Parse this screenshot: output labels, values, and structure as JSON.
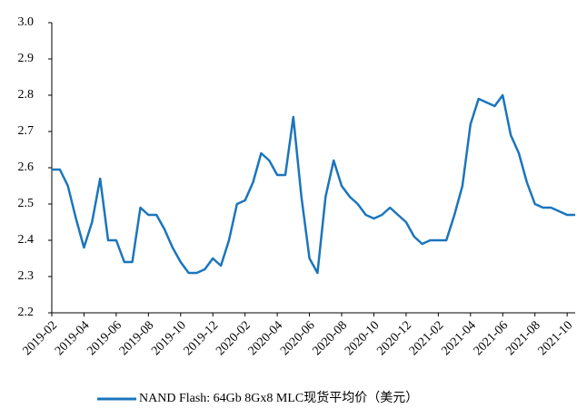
{
  "chart_data": {
    "type": "line",
    "categories": [
      "2019-02",
      null,
      null,
      null,
      "2019-04",
      null,
      null,
      null,
      "2019-06",
      null,
      null,
      null,
      "2019-08",
      null,
      null,
      null,
      "2019-10",
      null,
      null,
      null,
      "2019-12",
      null,
      null,
      null,
      "2020-02",
      null,
      null,
      null,
      "2020-04",
      null,
      null,
      null,
      "2020-06",
      null,
      null,
      null,
      "2020-08",
      null,
      null,
      null,
      "2020-10",
      null,
      null,
      null,
      "2020-12",
      null,
      null,
      null,
      "2021-02",
      null,
      null,
      null,
      "2021-04",
      null,
      null,
      null,
      "2021-06",
      null,
      null,
      null,
      "2021-08",
      null,
      null,
      null,
      "2021-10",
      null
    ],
    "series": [
      {
        "name": "NAND Flash:  64Gb 8Gx8 MLC现货平均价（美元）",
        "color": "#1b75bc",
        "values": [
          2.595,
          2.595,
          2.55,
          2.46,
          2.38,
          2.45,
          2.57,
          2.4,
          2.4,
          2.34,
          2.34,
          2.49,
          2.47,
          2.47,
          2.43,
          2.38,
          2.34,
          2.31,
          2.31,
          2.32,
          2.35,
          2.33,
          2.4,
          2.5,
          2.51,
          2.56,
          2.64,
          2.62,
          2.58,
          2.58,
          2.74,
          2.52,
          2.35,
          2.31,
          2.52,
          2.62,
          2.55,
          2.52,
          2.5,
          2.47,
          2.46,
          2.47,
          2.49,
          2.47,
          2.45,
          2.41,
          2.39,
          2.4,
          2.4,
          2.4,
          2.47,
          2.55,
          2.72,
          2.79,
          2.78,
          2.77,
          2.8,
          2.69,
          2.64,
          2.56,
          2.5,
          2.49,
          2.49,
          2.48,
          2.47,
          2.47
        ]
      }
    ],
    "ylim": [
      2.2,
      3.0
    ],
    "yticks": [
      2.2,
      2.3,
      2.4,
      2.5,
      2.6,
      2.7,
      2.8,
      2.9,
      {
        "value": 3,
        "label": "3.0"
      }
    ],
    "grid": false
  }
}
